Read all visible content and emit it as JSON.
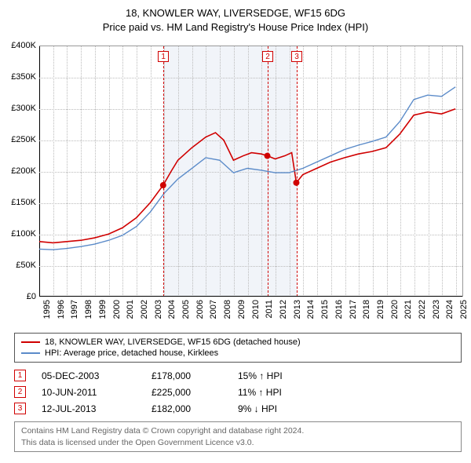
{
  "title": {
    "line1": "18, KNOWLER WAY, LIVERSEDGE, WF15 6DG",
    "line2": "Price paid vs. HM Land Registry's House Price Index (HPI)"
  },
  "chart": {
    "type": "line",
    "background_color": "#ffffff",
    "grid_color": "#bbbbbb",
    "x_axis": {
      "min": 1995,
      "max": 2025.5,
      "ticks": [
        1995,
        1996,
        1997,
        1998,
        1999,
        2000,
        2001,
        2002,
        2003,
        2004,
        2005,
        2006,
        2007,
        2008,
        2009,
        2010,
        2011,
        2012,
        2013,
        2014,
        2015,
        2016,
        2017,
        2018,
        2019,
        2020,
        2021,
        2022,
        2023,
        2024,
        2025
      ],
      "label_fontsize": 11,
      "label_rotation": -90
    },
    "y_axis": {
      "min": 0,
      "max": 400000,
      "ticks": [
        0,
        50000,
        100000,
        150000,
        200000,
        250000,
        300000,
        350000,
        400000
      ],
      "tick_labels": [
        "£0",
        "£50K",
        "£100K",
        "£150K",
        "£200K",
        "£250K",
        "£300K",
        "£350K",
        "£400K"
      ],
      "label_fontsize": 11
    },
    "shaded_bands": [
      {
        "from": 2003.93,
        "to": 2011.44,
        "color": "rgba(120,150,200,0.10)"
      },
      {
        "from": 2011.44,
        "to": 2013.53,
        "color": "rgba(120,150,200,0.10)"
      }
    ],
    "series": [
      {
        "name": "property",
        "label": "18, KNOWLER WAY, LIVERSEDGE, WF15 6DG (detached house)",
        "color": "#d00000",
        "line_width": 1.6,
        "points": [
          [
            1995,
            88000
          ],
          [
            1996,
            86000
          ],
          [
            1997,
            88000
          ],
          [
            1998,
            90000
          ],
          [
            1999,
            94000
          ],
          [
            2000,
            100000
          ],
          [
            2001,
            110000
          ],
          [
            2002,
            126000
          ],
          [
            2003,
            150000
          ],
          [
            2003.93,
            178000
          ],
          [
            2004.5,
            200000
          ],
          [
            2005,
            218000
          ],
          [
            2006,
            238000
          ],
          [
            2007,
            255000
          ],
          [
            2007.7,
            262000
          ],
          [
            2008.3,
            250000
          ],
          [
            2009,
            218000
          ],
          [
            2009.7,
            225000
          ],
          [
            2010.3,
            230000
          ],
          [
            2011,
            228000
          ],
          [
            2011.44,
            225000
          ],
          [
            2012,
            220000
          ],
          [
            2012.7,
            225000
          ],
          [
            2013.2,
            230000
          ],
          [
            2013.53,
            182000
          ],
          [
            2014,
            195000
          ],
          [
            2015,
            205000
          ],
          [
            2016,
            215000
          ],
          [
            2017,
            222000
          ],
          [
            2018,
            228000
          ],
          [
            2019,
            232000
          ],
          [
            2020,
            238000
          ],
          [
            2021,
            260000
          ],
          [
            2022,
            290000
          ],
          [
            2023,
            295000
          ],
          [
            2024,
            292000
          ],
          [
            2025,
            300000
          ]
        ],
        "sale_markers": [
          {
            "x": 2003.93,
            "y": 178000
          },
          {
            "x": 2011.44,
            "y": 225000
          },
          {
            "x": 2013.53,
            "y": 182000
          }
        ]
      },
      {
        "name": "hpi",
        "label": "HPI: Average price, detached house, Kirklees",
        "color": "#5b8bc9",
        "line_width": 1.4,
        "points": [
          [
            1995,
            76000
          ],
          [
            1996,
            75000
          ],
          [
            1997,
            77000
          ],
          [
            1998,
            80000
          ],
          [
            1999,
            84000
          ],
          [
            2000,
            90000
          ],
          [
            2001,
            98000
          ],
          [
            2002,
            112000
          ],
          [
            2003,
            135000
          ],
          [
            2004,
            165000
          ],
          [
            2005,
            188000
          ],
          [
            2006,
            205000
          ],
          [
            2007,
            222000
          ],
          [
            2008,
            218000
          ],
          [
            2009,
            198000
          ],
          [
            2010,
            205000
          ],
          [
            2011,
            202000
          ],
          [
            2012,
            198000
          ],
          [
            2013,
            198000
          ],
          [
            2014,
            205000
          ],
          [
            2015,
            215000
          ],
          [
            2016,
            225000
          ],
          [
            2017,
            235000
          ],
          [
            2018,
            242000
          ],
          [
            2019,
            248000
          ],
          [
            2020,
            255000
          ],
          [
            2021,
            280000
          ],
          [
            2022,
            315000
          ],
          [
            2023,
            322000
          ],
          [
            2024,
            320000
          ],
          [
            2025,
            335000
          ]
        ]
      }
    ],
    "event_lines": [
      {
        "id": "1",
        "x": 2003.93,
        "color": "#d00000"
      },
      {
        "id": "2",
        "x": 2011.44,
        "color": "#d00000"
      },
      {
        "id": "3",
        "x": 2013.53,
        "color": "#d00000"
      }
    ]
  },
  "legend": {
    "items": [
      {
        "color": "#d00000",
        "label": "18, KNOWLER WAY, LIVERSEDGE, WF15 6DG (detached house)"
      },
      {
        "color": "#5b8bc9",
        "label": "HPI: Average price, detached house, Kirklees"
      }
    ]
  },
  "sales": [
    {
      "id": "1",
      "date": "05-DEC-2003",
      "price": "£178,000",
      "pct": "15%",
      "dir": "up",
      "dir_glyph": "↑",
      "suffix": "HPI",
      "color": "#d00000"
    },
    {
      "id": "2",
      "date": "10-JUN-2011",
      "price": "£225,000",
      "pct": "11%",
      "dir": "up",
      "dir_glyph": "↑",
      "suffix": "HPI",
      "color": "#d00000"
    },
    {
      "id": "3",
      "date": "12-JUL-2013",
      "price": "£182,000",
      "pct": "9%",
      "dir": "down",
      "dir_glyph": "↓",
      "suffix": "HPI",
      "color": "#d00000"
    }
  ],
  "attribution": {
    "line1": "Contains HM Land Registry data © Crown copyright and database right 2024.",
    "line2": "This data is licensed under the Open Government Licence v3.0."
  }
}
